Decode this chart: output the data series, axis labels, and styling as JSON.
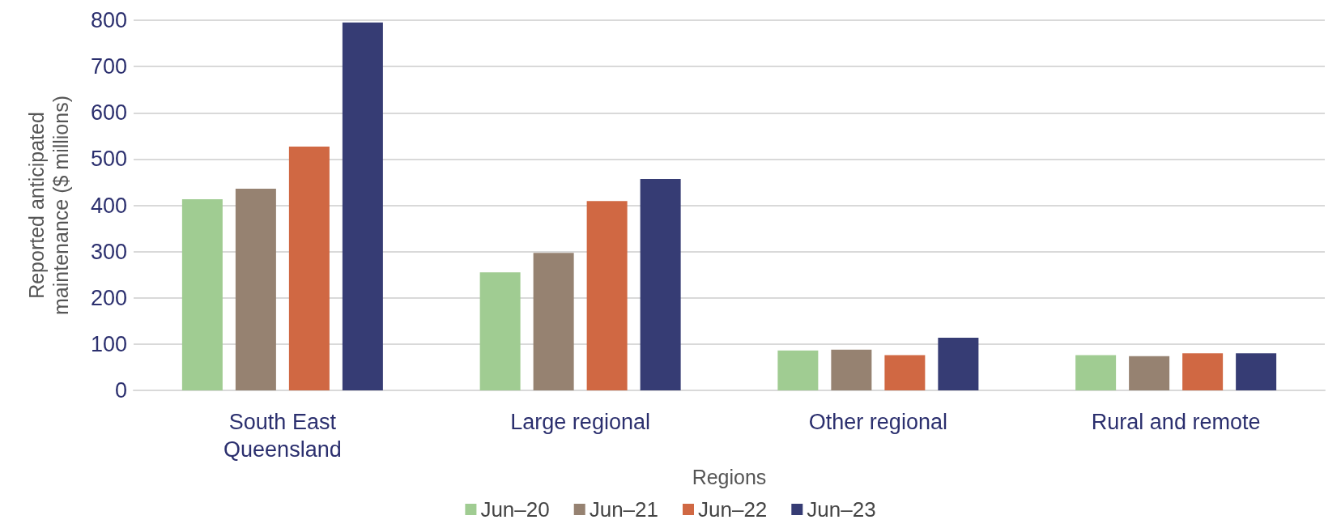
{
  "chart_data": {
    "type": "bar",
    "xlabel": "Regions",
    "ylabel": "Reported anticipated\nmaintenance ($ millions)",
    "categories": [
      "South East\nQueensland",
      "Large regional",
      "Other regional",
      "Rural and remote"
    ],
    "series": [
      {
        "name": "Jun–20",
        "color": "#a0cc92",
        "values": [
          413,
          255,
          86,
          76
        ]
      },
      {
        "name": "Jun–21",
        "color": "#968271",
        "values": [
          436,
          297,
          88,
          74
        ]
      },
      {
        "name": "Jun–22",
        "color": "#d06843",
        "values": [
          527,
          409,
          76,
          80
        ]
      },
      {
        "name": "Jun–23",
        "color": "#363c74",
        "values": [
          795,
          457,
          114,
          80
        ]
      }
    ],
    "ylim": [
      0,
      800
    ],
    "yticks": [
      0,
      100,
      200,
      300,
      400,
      500,
      600,
      700,
      800
    ],
    "grid": "y",
    "legend": "bottom"
  }
}
